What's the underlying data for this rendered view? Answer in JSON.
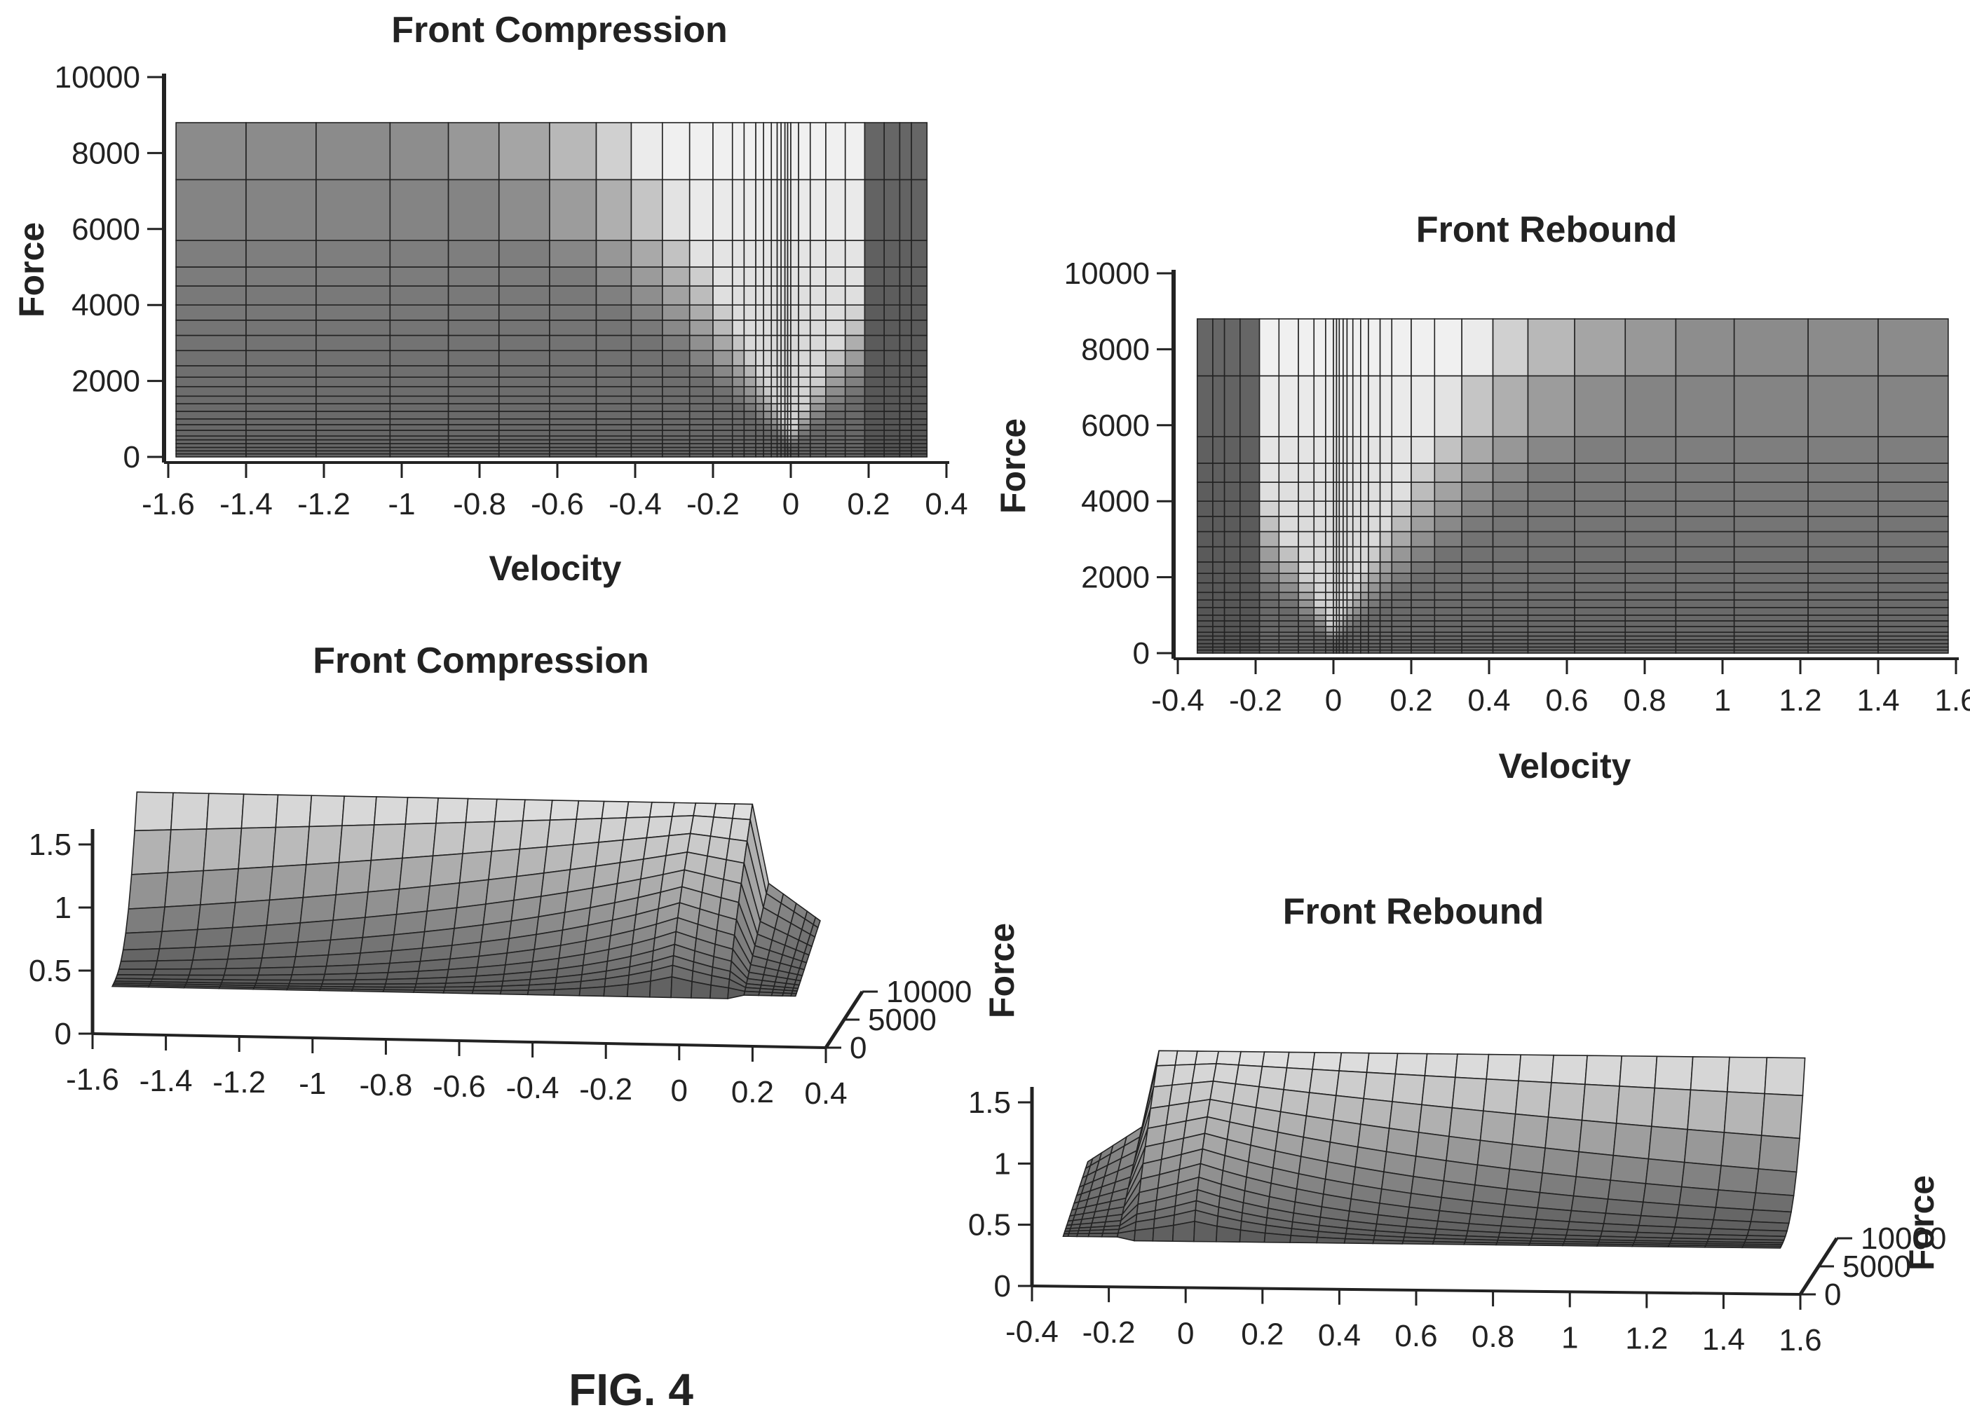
{
  "figure_label": "FIG. 4",
  "chart_data": [
    {
      "id": "heatmap-compression",
      "type": "heatmap",
      "title": "Front Compression",
      "xlabel": "Velocity",
      "ylabel": "Force",
      "xlim": [
        -1.6,
        0.4
      ],
      "ylim": [
        0,
        10000
      ],
      "data_extent": {
        "x": [
          -1.58,
          0.35
        ],
        "y": [
          0,
          8800
        ]
      },
      "xticks": [
        "-1.6",
        "-1.4",
        "-1.2",
        "-1",
        "-0.8",
        "-0.6",
        "-0.4",
        "-0.2",
        "0",
        "0.2",
        "0.4"
      ],
      "yticks": [
        "0",
        "2000",
        "4000",
        "6000",
        "8000",
        "10000"
      ],
      "x_grid": [
        -1.58,
        -1.4,
        -1.22,
        -1.03,
        -0.88,
        -0.75,
        -0.62,
        -0.5,
        -0.41,
        -0.33,
        -0.26,
        -0.2,
        -0.15,
        -0.12,
        -0.09,
        -0.07,
        -0.05,
        -0.035,
        -0.025,
        -0.015,
        -0.008,
        0,
        0.02,
        0.05,
        0.09,
        0.14,
        0.19,
        0.24,
        0.28,
        0.31,
        0.35
      ],
      "y_grid": [
        0,
        80,
        160,
        250,
        350,
        450,
        550,
        700,
        850,
        1000,
        1200,
        1400,
        1600,
        1850,
        2100,
        2400,
        2800,
        3200,
        3600,
        4000,
        4500,
        5000,
        5700,
        7300,
        8800
      ],
      "grid": true,
      "legend": "none"
    },
    {
      "id": "heatmap-rebound",
      "type": "heatmap",
      "title": "Front Rebound",
      "xlabel": "Velocity",
      "ylabel": "Force",
      "xlim": [
        -0.4,
        1.6
      ],
      "ylim": [
        0,
        10000
      ],
      "data_extent": {
        "x": [
          -0.35,
          1.58
        ],
        "y": [
          0,
          8800
        ]
      },
      "xticks": [
        "-0.4",
        "-0.2",
        "0",
        "0.2",
        "0.4",
        "0.6",
        "0.8",
        "1",
        "1.2",
        "1.4",
        "1.6"
      ],
      "yticks": [
        "0",
        "2000",
        "4000",
        "6000",
        "8000",
        "10000"
      ],
      "x_grid": [
        -0.35,
        -0.31,
        -0.28,
        -0.24,
        -0.19,
        -0.14,
        -0.09,
        -0.05,
        -0.02,
        0,
        0.008,
        0.015,
        0.025,
        0.035,
        0.05,
        0.07,
        0.09,
        0.12,
        0.15,
        0.2,
        0.26,
        0.33,
        0.41,
        0.5,
        0.62,
        0.75,
        0.88,
        1.03,
        1.22,
        1.4,
        1.58
      ],
      "y_grid": [
        0,
        80,
        160,
        250,
        350,
        450,
        550,
        700,
        850,
        1000,
        1200,
        1400,
        1600,
        1850,
        2100,
        2400,
        2800,
        3200,
        3600,
        4000,
        4500,
        5000,
        5700,
        7300,
        8800
      ],
      "grid": true,
      "legend": "none"
    },
    {
      "id": "surface-compression",
      "type": "surface",
      "title": "Front Compression",
      "xlabel": "",
      "ylabel": "Force",
      "zlabel": "",
      "xlim": [
        -1.6,
        0.4
      ],
      "ylim": [
        0,
        10000
      ],
      "zlim": [
        0,
        1.5
      ],
      "xticks": [
        "-1.6",
        "-1.4",
        "-1.2",
        "-1",
        "-0.8",
        "-0.6",
        "-0.4",
        "-0.2",
        "0",
        "0.2",
        "0.4"
      ],
      "yticks": [
        "0",
        "5000",
        "10000"
      ],
      "zticks": [
        "0",
        "0.5",
        "1",
        "1.5"
      ],
      "direction": "compression",
      "grid": false,
      "legend": "none"
    },
    {
      "id": "surface-rebound",
      "type": "surface",
      "title": "Front Rebound",
      "xlabel": "",
      "ylabel": "Force",
      "zlabel": "",
      "xlim": [
        -0.4,
        1.6
      ],
      "ylim": [
        0,
        10000
      ],
      "zlim": [
        0,
        1.5
      ],
      "xticks": [
        "-0.4",
        "-0.2",
        "0",
        "0.2",
        "0.4",
        "0.6",
        "0.8",
        "1",
        "1.2",
        "1.4",
        "1.6"
      ],
      "yticks": [
        "0",
        "5000",
        "10000"
      ],
      "zticks": [
        "0",
        "0.5",
        "1",
        "1.5"
      ],
      "direction": "rebound",
      "grid": false,
      "legend": "none"
    }
  ]
}
